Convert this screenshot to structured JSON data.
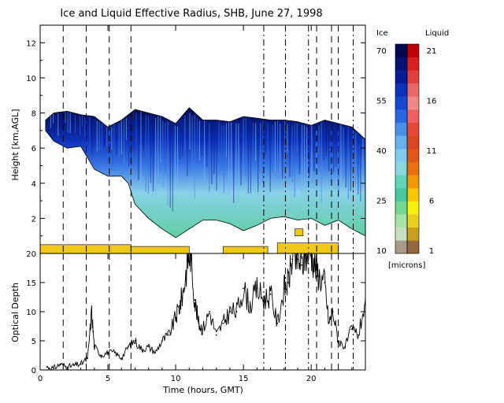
{
  "chart_data": [
    {
      "type": "heatmap",
      "title": "Ice and Liquid Effective Radius, SHB, June 27, 1998",
      "xlabel": "",
      "ylabel": "Height [km,AGL]",
      "xlim": [
        0,
        24
      ],
      "ylim": [
        0,
        13
      ],
      "yticks": [
        "2",
        "4",
        "6",
        "8",
        "10",
        "12"
      ],
      "grid": false,
      "vertical_lines": [
        {
          "x": 1.7,
          "style": "dashed"
        },
        {
          "x": 3.4,
          "style": "dashed"
        },
        {
          "x": 5.1,
          "style": "dashed"
        },
        {
          "x": 6.7,
          "style": "dashed"
        },
        {
          "x": 16.5,
          "style": "dash-dot"
        },
        {
          "x": 18.1,
          "style": "dash-dot"
        },
        {
          "x": 19.8,
          "style": "dash-dot"
        },
        {
          "x": 20.4,
          "style": "dashed"
        },
        {
          "x": 21.5,
          "style": "dashed"
        },
        {
          "x": 22.0,
          "style": "dashed"
        },
        {
          "x": 23.1,
          "style": "dash-dot"
        }
      ],
      "cloud_top_km": [
        [
          0.4,
          7.6
        ],
        [
          1.0,
          8.0
        ],
        [
          2.0,
          8.1
        ],
        [
          3.0,
          7.9
        ],
        [
          4.0,
          7.8
        ],
        [
          5.0,
          7.2
        ],
        [
          6.0,
          7.6
        ],
        [
          7.0,
          8.2
        ],
        [
          8.0,
          8.0
        ],
        [
          9.0,
          7.8
        ],
        [
          10.0,
          7.4
        ],
        [
          11.0,
          8.3
        ],
        [
          12.0,
          7.6
        ],
        [
          13.0,
          7.6
        ],
        [
          14.0,
          7.5
        ],
        [
          15.0,
          7.8
        ],
        [
          16.0,
          7.7
        ],
        [
          17.0,
          7.6
        ],
        [
          18.0,
          7.6
        ],
        [
          19.0,
          7.5
        ],
        [
          20.0,
          7.3
        ],
        [
          21.0,
          7.6
        ],
        [
          22.0,
          7.4
        ],
        [
          23.0,
          7.2
        ],
        [
          24.0,
          6.5
        ]
      ],
      "cloud_base_km": [
        [
          0.4,
          7.0
        ],
        [
          1.0,
          6.4
        ],
        [
          2.0,
          6.0
        ],
        [
          3.0,
          6.1
        ],
        [
          4.0,
          4.8
        ],
        [
          5.0,
          4.4
        ],
        [
          6.0,
          4.4
        ],
        [
          6.5,
          4.0
        ],
        [
          7.0,
          2.8
        ],
        [
          8.0,
          2.0
        ],
        [
          9.0,
          1.4
        ],
        [
          10.0,
          0.9
        ],
        [
          11.0,
          1.4
        ],
        [
          12.0,
          1.9
        ],
        [
          13.0,
          1.9
        ],
        [
          14.0,
          1.7
        ],
        [
          15.0,
          1.3
        ],
        [
          16.0,
          1.6
        ],
        [
          17.0,
          2.0
        ],
        [
          18.0,
          2.1
        ],
        [
          19.0,
          1.9
        ],
        [
          20.0,
          2.0
        ],
        [
          21.0,
          1.6
        ],
        [
          22.0,
          1.9
        ],
        [
          23.0,
          1.4
        ],
        [
          24.0,
          1.0
        ]
      ],
      "liquid_layers": [
        {
          "x_start": 0.0,
          "x_end": 6.7,
          "base_km": 0.0,
          "top_km": 0.5
        },
        {
          "x_start": 6.7,
          "x_end": 11.0,
          "base_km": 0.0,
          "top_km": 0.4
        },
        {
          "x_start": 13.5,
          "x_end": 16.8,
          "base_km": 0.0,
          "top_km": 0.4
        },
        {
          "x_start": 17.5,
          "x_end": 22.0,
          "base_km": 0.0,
          "top_km": 0.6
        },
        {
          "x_start": 18.8,
          "x_end": 19.4,
          "base_km": 1.0,
          "top_km": 1.4
        }
      ]
    },
    {
      "type": "line",
      "title": "",
      "xlabel": "Time (hours, GMT)",
      "ylabel": "Optical Depth",
      "xlim": [
        0,
        24
      ],
      "ylim": [
        0,
        20
      ],
      "xticks": [
        "0",
        "5",
        "10",
        "15",
        "20"
      ],
      "yticks": [
        "0",
        "5",
        "10",
        "15",
        "20"
      ],
      "grid": false,
      "series": [
        {
          "name": "",
          "x": [
            0.5,
            1,
            1.5,
            2,
            2.5,
            3,
            3.5,
            3.8,
            4,
            4.5,
            5,
            5.5,
            6,
            6.5,
            7,
            7.5,
            8,
            8.5,
            9,
            9.5,
            10,
            10.3,
            10.6,
            10.9,
            11.1,
            11.4,
            11.7,
            12,
            12.5,
            13,
            13.5,
            14,
            14.5,
            15,
            15.5,
            16,
            16.5,
            17,
            17.5,
            18,
            18.3,
            18.6,
            19,
            19.3,
            19.6,
            20,
            20.3,
            20.6,
            21,
            21.3,
            21.6,
            22,
            22.5,
            23,
            23.5,
            24
          ],
          "values": [
            0.5,
            0.3,
            1,
            0.5,
            0.8,
            1,
            2,
            10,
            4,
            2.5,
            3,
            3,
            2,
            4,
            5,
            3.5,
            4,
            3,
            5,
            6,
            9,
            11,
            14,
            19,
            20,
            12,
            8,
            7,
            10,
            6,
            8,
            10,
            10,
            14,
            11,
            14,
            12,
            13,
            8,
            14,
            15,
            19,
            19,
            18,
            20,
            20,
            18,
            16,
            15,
            8,
            10,
            5,
            4,
            7,
            6,
            12
          ]
        }
      ]
    }
  ],
  "colorbar": {
    "ice_label": "Ice",
    "liquid_label": "Liquid",
    "ice_ticks": [
      "70",
      "55",
      "40",
      "25",
      "10"
    ],
    "liquid_ticks": [
      "21",
      "16",
      "11",
      "6",
      "1"
    ],
    "units_label": "[microns]",
    "ice_colors": [
      "#a89a88",
      "#c8dfc0",
      "#a8e4a8",
      "#70d890",
      "#48c8a0",
      "#60d4b8",
      "#88d8dc",
      "#80ccee",
      "#68b0ec",
      "#4890e8",
      "#2868e0",
      "#1448d0",
      "#0c30b8",
      "#081c98",
      "#041074",
      "#020850"
    ],
    "liquid_colors": [
      "#906840",
      "#c8a020",
      "#e8d020",
      "#f8f010",
      "#f8c800",
      "#f09800",
      "#e87010",
      "#e05818",
      "#d84820",
      "#e84838",
      "#f06060",
      "#f08888",
      "#e86868",
      "#e04040",
      "#d82020",
      "#c00000"
    ]
  }
}
